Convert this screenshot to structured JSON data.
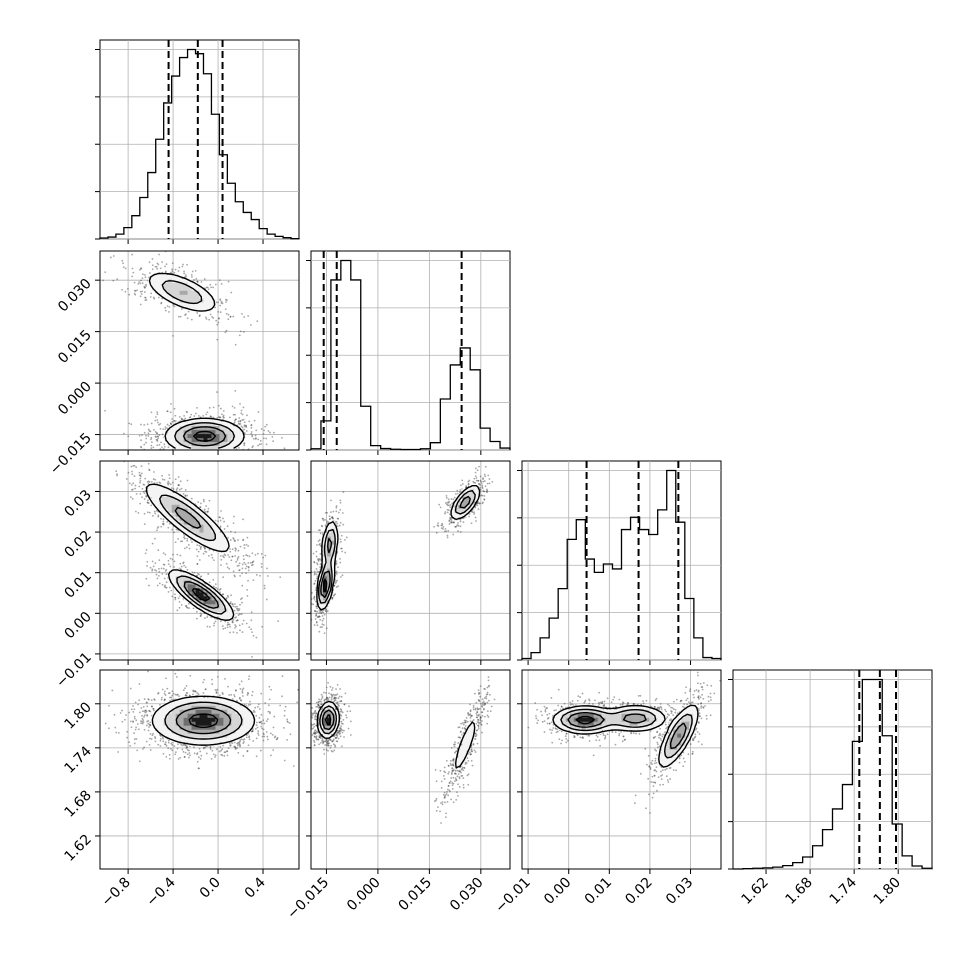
{
  "chart_data": {
    "type": "corner",
    "grid": true,
    "scatter_points_per_panel": 1500,
    "colors": {
      "line": "#000000",
      "grid": "#b0b0b0",
      "density": [
        "#ffffff",
        "#f4f4f4",
        "#d6d6d6",
        "#a8a8a8",
        "#6e6e6e",
        "#1a1a1a"
      ],
      "scatter": "#3c3c3c"
    },
    "parameters": [
      {
        "ticks": [
          -0.8,
          -0.4,
          0.0,
          0.4
        ],
        "tick_labels": [
          "−0.8",
          "−0.4",
          "0.0",
          "0.4"
        ],
        "range": [
          -1.05,
          0.72
        ],
        "quantiles": [
          -0.44,
          -0.18,
          0.04
        ],
        "histogram": [
          0.3,
          0.6,
          1.5,
          3.5,
          7.2,
          12.8,
          20.5,
          30.8,
          42.0,
          50.3,
          56.0,
          58.5,
          57.2,
          51.0,
          38.5,
          26.0,
          17.2,
          11.5,
          8.2,
          6.0,
          3.2,
          1.5,
          0.8,
          0.4,
          0.1
        ]
      },
      {
        "ticks": [
          -0.015,
          0.0,
          0.015,
          0.03
        ],
        "tick_labels": [
          "−0.015",
          "0.000",
          "0.015",
          "0.030"
        ],
        "range": [
          -0.0195,
          0.0385
        ],
        "quantiles": [
          -0.0158,
          -0.012,
          0.0244
        ],
        "histogram": [
          0.5,
          12.0,
          70.0,
          78.0,
          70.0,
          18.0,
          1.8,
          0.6,
          0.3,
          0.2,
          0.2,
          0.5,
          3.0,
          21.0,
          35.0,
          42.0,
          33.0,
          9.0,
          3.5,
          0.8
        ]
      },
      {
        "ticks": [
          -0.01,
          0.0,
          0.01,
          0.02,
          0.03
        ],
        "tick_labels": [
          "−0.01",
          "0.00",
          "0.01",
          "0.02",
          "0.03"
        ],
        "range": [
          -0.0115,
          0.0375
        ],
        "quantiles": [
          0.0044,
          0.0172,
          0.027
        ],
        "histogram": [
          0.3,
          1.5,
          4.5,
          8.5,
          14.5,
          24.5,
          28.5,
          20.5,
          17.8,
          19.5,
          18.5,
          26.5,
          29.0,
          26.5,
          25.5,
          30.5,
          38.5,
          28.0,
          12.5,
          4.5,
          0.5,
          0.3
        ]
      },
      {
        "ticks": [
          1.62,
          1.68,
          1.74,
          1.8
        ],
        "tick_labels": [
          "1.62",
          "1.68",
          "1.74",
          "1.80"
        ],
        "range": [
          1.575,
          1.846
        ],
        "quantiles": [
          1.747,
          1.775,
          1.797
        ],
        "histogram": [
          0.0,
          0.1,
          0.2,
          0.3,
          0.5,
          0.9,
          1.7,
          3.2,
          6.2,
          10.5,
          16.0,
          22.5,
          34.0,
          50.5,
          50.5,
          35.5,
          12.0,
          3.5,
          0.8,
          0.2
        ]
      }
    ],
    "pairs": [
      {
        "row": 1,
        "col": 0,
        "modes": [
          {
            "mx": -0.32,
            "my": 0.0265,
            "sx": 0.17,
            "sy": 0.0032,
            "rho": -0.62,
            "w": 0.34
          },
          {
            "mx": -0.12,
            "my": -0.0155,
            "sx": 0.17,
            "sy": 0.0025,
            "rho": 0.0,
            "w": 0.66
          }
        ]
      },
      {
        "row": 2,
        "col": 0,
        "modes": [
          {
            "mx": -0.27,
            "my": 0.0235,
            "sx": 0.2,
            "sy": 0.0045,
            "rho": -0.85,
            "w": 0.55
          },
          {
            "mx": -0.15,
            "my": 0.0045,
            "sx": 0.14,
            "sy": 0.003,
            "rho": -0.8,
            "w": 0.45
          }
        ]
      },
      {
        "row": 2,
        "col": 1,
        "modes": [
          {
            "mx": -0.0153,
            "my": 0.007,
            "sx": 0.0012,
            "sy": 0.003,
            "rho": 0.45,
            "w": 0.4
          },
          {
            "mx": -0.014,
            "my": 0.017,
            "sx": 0.0012,
            "sy": 0.003,
            "rho": 0.3,
            "w": 0.28
          },
          {
            "mx": 0.0255,
            "my": 0.0273,
            "sx": 0.0022,
            "sy": 0.0022,
            "rho": 0.65,
            "w": 0.32
          }
        ]
      },
      {
        "row": 3,
        "col": 0,
        "modes": [
          {
            "mx": -0.13,
            "my": 1.777,
            "sx": 0.22,
            "sy": 0.016,
            "rho": 0.0,
            "w": 1.0
          }
        ]
      },
      {
        "row": 3,
        "col": 1,
        "modes": [
          {
            "mx": -0.0145,
            "my": 1.778,
            "sx": 0.0015,
            "sy": 0.012,
            "rho": 0.1,
            "w": 0.68
          },
          {
            "mx": 0.0255,
            "my": 1.744,
            "sx": 0.0025,
            "sy": 0.028,
            "rho": 0.85,
            "w": 0.32
          }
        ]
      },
      {
        "row": 3,
        "col": 2,
        "modes": [
          {
            "mx": 0.004,
            "my": 1.778,
            "sx": 0.0038,
            "sy": 0.009,
            "rho": 0.0,
            "w": 0.4
          },
          {
            "mx": 0.0165,
            "my": 1.78,
            "sx": 0.0038,
            "sy": 0.009,
            "rho": 0.0,
            "w": 0.28
          },
          {
            "mx": 0.027,
            "my": 1.756,
            "sx": 0.0025,
            "sy": 0.022,
            "rho": 0.75,
            "w": 0.32
          }
        ]
      }
    ]
  }
}
